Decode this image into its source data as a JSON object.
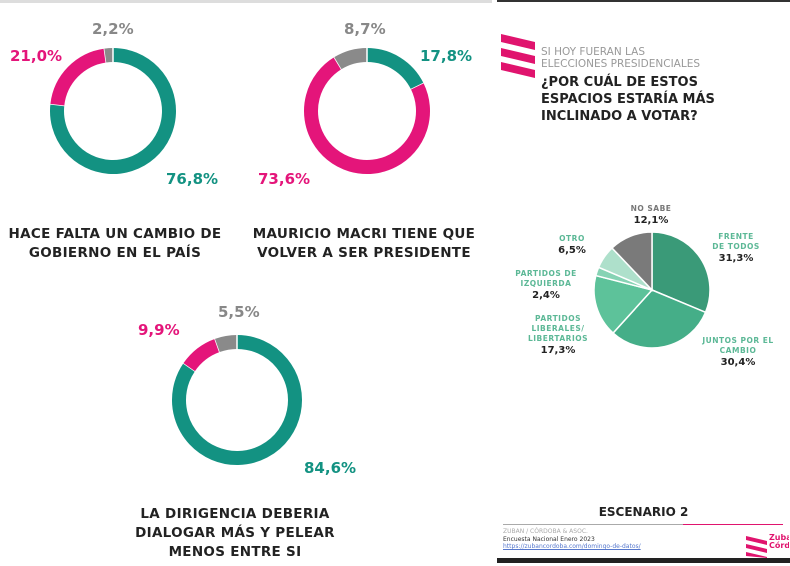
{
  "colors": {
    "green": "#139282",
    "pink": "#e4157a",
    "grey": "#8a8a8a",
    "brand": "#e0146e"
  },
  "chart_data": [
    {
      "type": "donut",
      "title": "HACE FALTA UN CAMBIO DE GOBIERNO EN EL PAÍS",
      "values": [
        76.8,
        21.0,
        2.2
      ],
      "labels": [
        "76,8%",
        "21,0%",
        "2,2%"
      ],
      "colors": [
        "#139282",
        "#e4157a",
        "#8a8a8a"
      ]
    },
    {
      "type": "donut",
      "title": "MAURICIO MACRI TIENE QUE VOLVER A SER PRESIDENTE",
      "values": [
        17.8,
        73.6,
        8.7
      ],
      "labels": [
        "17,8%",
        "73,6%",
        "8,7%"
      ],
      "colors": [
        "#139282",
        "#e4157a",
        "#8a8a8a"
      ]
    },
    {
      "type": "donut",
      "title": "LA DIRIGENCIA DEBERIA DIALOGAR MÁS Y PELEAR MENOS ENTRE SI",
      "values": [
        84.6,
        9.9,
        5.5
      ],
      "labels": [
        "84,6%",
        "9,9%",
        "5,5%"
      ],
      "colors": [
        "#139282",
        "#e4157a",
        "#8a8a8a"
      ]
    },
    {
      "type": "pie",
      "subtitle": "SI HOY FUERAN LAS ELECCIONES PRESIDENCIALES",
      "title": "¿POR CUÁL DE ESTOS ESPACIOS ESTARÍA MÁS INCLINADO A VOTAR?",
      "categories": [
        "FRENTE DE TODOS",
        "JUNTOS POR EL CAMBIO",
        "PARTIDOS LIBERALES/ LIBERTARIOS",
        "PARTIDOS DE IZQUIERDA",
        "OTRO",
        "NO SABE"
      ],
      "values": [
        31.3,
        30.4,
        17.3,
        2.4,
        6.5,
        12.1
      ],
      "labels": [
        "31,3%",
        "30,4%",
        "17,3%",
        "2,4%",
        "6,5%",
        "12,1%"
      ],
      "colors": [
        "#3a9a78",
        "#45ae88",
        "#5dc29a",
        "#86d3b4",
        "#aee0cb",
        "#7a7a7a"
      ],
      "scenario": "ESCENARIO 2"
    }
  ],
  "footer": {
    "source": "ZUBAN / CÓRDOBA & ASOC.",
    "survey": "Encuesta Nacional Enero 2023",
    "url": "https://zubancordoba.com/domingo-de-datos/",
    "brand": "Zuban Córdoba"
  }
}
